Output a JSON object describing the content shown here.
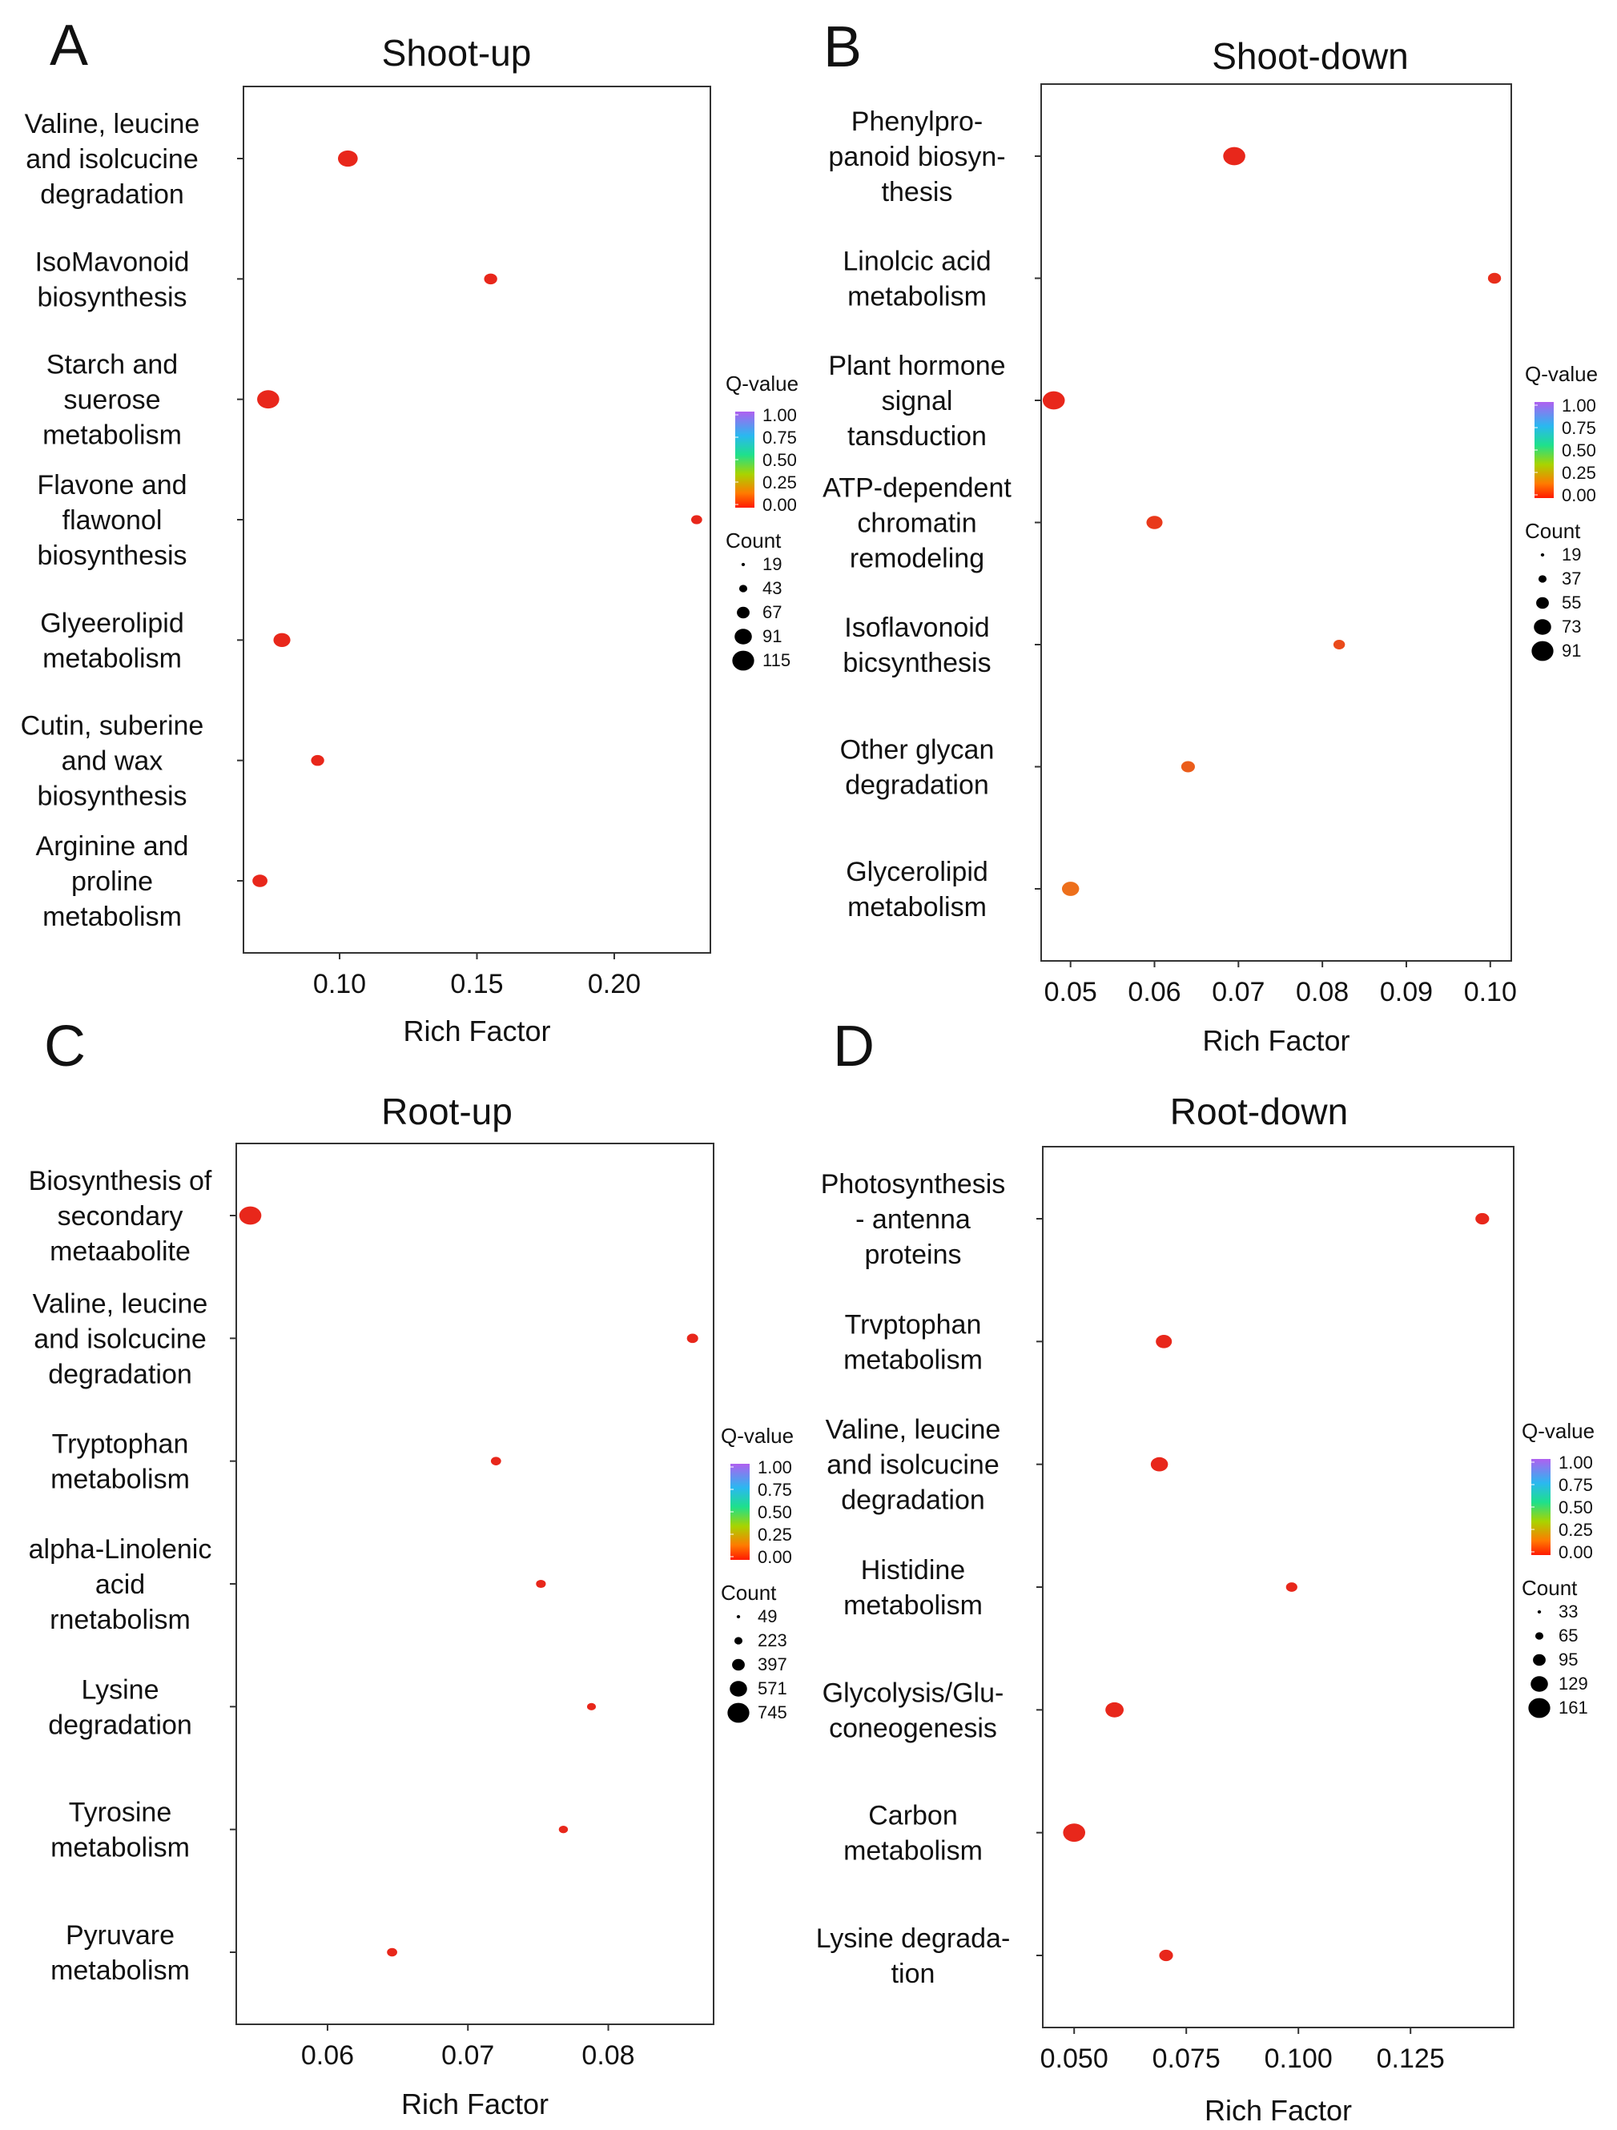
{
  "colors": {
    "low": "#e8271b",
    "mid": "#ff7a00",
    "frame": "#333333"
  },
  "legend_text": {
    "qvalue_title": "Q-value",
    "qvalue_ticks": [
      "1.00",
      "0.75",
      "0.50",
      "0.25",
      "0.00"
    ],
    "count_title": "Count"
  },
  "chart_data": [
    {
      "panel": "A",
      "type": "scatter",
      "title": "Shoot-up",
      "xlabel": "Rich Factor",
      "xlim": [
        0.065,
        0.235
      ],
      "xticks": [
        0.1,
        0.15,
        0.2
      ],
      "xtick_labels": [
        "0.10",
        "0.15",
        "0.20"
      ],
      "categories": [
        [
          "Valine, leucine",
          "and isolcucine",
          "degradation"
        ],
        [
          "IsoMavonoid",
          "biosynthesis"
        ],
        [
          "Starch and",
          "suerose",
          "metabolism"
        ],
        [
          "Flavone and",
          "flawonol",
          "biosynthesis"
        ],
        [
          "Glyeerolipid",
          "metabolism"
        ],
        [
          "Cutin, suberine",
          "and wax",
          "biosynthesis"
        ],
        [
          "Arginine and",
          "proline",
          "metabolism"
        ]
      ],
      "x": [
        0.103,
        0.155,
        0.074,
        0.23,
        0.079,
        0.092,
        0.071
      ],
      "count": [
        67,
        19,
        91,
        10,
        43,
        19,
        30
      ],
      "qvalue": [
        0.0,
        0.0,
        0.0,
        0.0,
        0.0,
        0.0,
        0.0
      ],
      "count_legend": [
        "19",
        "43",
        "67",
        "91",
        "115"
      ]
    },
    {
      "panel": "B",
      "type": "scatter",
      "title": "Shoot-down",
      "xlabel": "Rich Factor",
      "xlim": [
        0.0465,
        0.1025
      ],
      "xticks": [
        0.05,
        0.06,
        0.07,
        0.08,
        0.09,
        0.1
      ],
      "xtick_labels": [
        "0.05",
        "0.06",
        "0.07",
        "0.08",
        "0.09",
        "0.10"
      ],
      "categories": [
        [
          "Phenylpro-",
          "panoid biosyn-",
          "thesis"
        ],
        [
          "Linolcic acid",
          "metabolism"
        ],
        [
          "Plant hormone",
          "signal",
          "tansduction"
        ],
        [
          "ATP-dependent",
          "chromatin",
          "remodeling"
        ],
        [
          "Isoflavonoid",
          "bicsynthesis"
        ],
        [
          "Other glycan",
          "degradation"
        ],
        [
          "Glycerolipid",
          "metabolism"
        ]
      ],
      "x": [
        0.0695,
        0.1005,
        0.048,
        0.06,
        0.082,
        0.064,
        0.05
      ],
      "count": [
        91,
        19,
        91,
        37,
        12,
        22,
        45
      ],
      "qvalue": [
        0.0,
        0.02,
        0.0,
        0.05,
        0.1,
        0.15,
        0.2
      ],
      "count_legend": [
        "19",
        "37",
        "55",
        "73",
        "91"
      ]
    },
    {
      "panel": "C",
      "type": "scatter",
      "title": "Root-up",
      "xlabel": "Rich Factor",
      "xlim": [
        0.0535,
        0.0875
      ],
      "xticks": [
        0.06,
        0.07,
        0.08
      ],
      "xtick_labels": [
        "0.06",
        "0.07",
        "0.08"
      ],
      "categories": [
        [
          "Biosynthesis of",
          "secondary",
          "metaabolite"
        ],
        [
          "Valine, leucine",
          "and isolcucine",
          "degradation"
        ],
        [
          "Tryptophan",
          "metabolism"
        ],
        [
          "alpha-Linolenic",
          "acid",
          "rnetabolism"
        ],
        [
          "Lysine",
          "degradation"
        ],
        [
          "Tyrosine",
          "metabolism"
        ],
        [
          "Pyruvare",
          "metabolism"
        ]
      ],
      "x": [
        0.0545,
        0.086,
        0.072,
        0.0752,
        0.0788,
        0.0768,
        0.0646
      ],
      "count": [
        745,
        90,
        60,
        49,
        30,
        35,
        60
      ],
      "qvalue": [
        0.0,
        0.0,
        0.0,
        0.0,
        0.0,
        0.0,
        0.0
      ],
      "count_legend": [
        "49",
        "223",
        "397",
        "571",
        "745"
      ]
    },
    {
      "panel": "D",
      "type": "scatter",
      "title": "Root-down",
      "xlabel": "Rich Factor",
      "xlim": [
        0.043,
        0.148
      ],
      "xticks": [
        0.05,
        0.075,
        0.1,
        0.125
      ],
      "xtick_labels": [
        "0.050",
        "0.075",
        "0.100",
        "0.125"
      ],
      "categories": [
        [
          "Photosynthesis",
          "- antenna",
          "proteins"
        ],
        [
          "Trvptophan",
          "metabolism"
        ],
        [
          "Valine, leucine",
          "and isolcucine",
          "degradation"
        ],
        [
          "Histidine",
          "metabolism"
        ],
        [
          "Glycolysis/Glu-",
          "coneogenesis"
        ],
        [
          "Carbon",
          "metabolism"
        ],
        [
          "Lysine degrada-",
          "tion"
        ]
      ],
      "x": [
        0.141,
        0.07,
        0.069,
        0.0985,
        0.059,
        0.05,
        0.0705
      ],
      "count": [
        40,
        65,
        80,
        20,
        95,
        161,
        40
      ],
      "qvalue": [
        0.0,
        0.0,
        0.0,
        0.0,
        0.0,
        0.0,
        0.0
      ],
      "count_legend": [
        "33",
        "65",
        "95",
        "129",
        "161"
      ]
    }
  ]
}
